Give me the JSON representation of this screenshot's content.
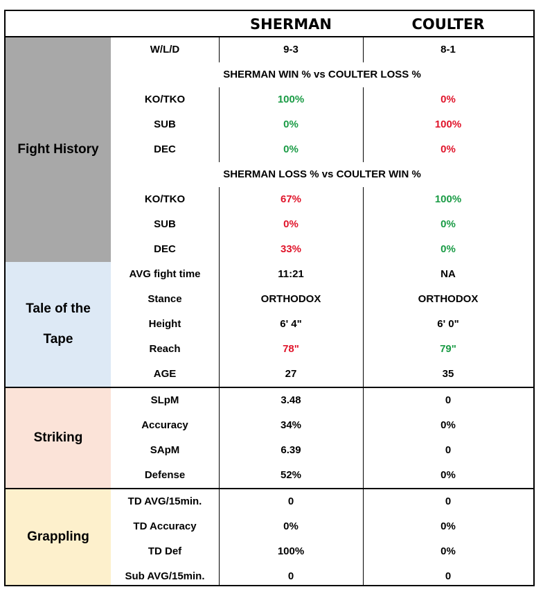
{
  "fighters": {
    "left": "SHERMAN",
    "right": "COULTER"
  },
  "colors": {
    "green": "#1a9b45",
    "red": "#e0142a",
    "fight_history": "#a8a8a8",
    "tape": "#dde9f5",
    "striking": "#fbe3d8",
    "grappling": "#fdf0cc"
  },
  "fight_history": {
    "title": "Fight History",
    "record": {
      "label": "W/L/D",
      "left": "9-3",
      "right": "8-1"
    },
    "win_header": "SHERMAN WIN % vs COULTER LOSS %",
    "win_rows": [
      {
        "label": "KO/TKO",
        "left": "100%",
        "right": "0%",
        "left_color": "green",
        "right_color": "red"
      },
      {
        "label": "SUB",
        "left": "0%",
        "right": "100%",
        "left_color": "green",
        "right_color": "red"
      },
      {
        "label": "DEC",
        "left": "0%",
        "right": "0%",
        "left_color": "green",
        "right_color": "red"
      }
    ],
    "loss_header": "SHERMAN LOSS % vs COULTER WIN %",
    "loss_rows": [
      {
        "label": "KO/TKO",
        "left": "67%",
        "right": "100%",
        "left_color": "red",
        "right_color": "green"
      },
      {
        "label": "SUB",
        "left": "0%",
        "right": "0%",
        "left_color": "red",
        "right_color": "green"
      },
      {
        "label": "DEC",
        "left": "33%",
        "right": "0%",
        "left_color": "red",
        "right_color": "green"
      }
    ]
  },
  "tape": {
    "title_line1": "Tale of the",
    "title_line2": "Tape",
    "rows": [
      {
        "label": "AVG fight time",
        "left": "11:21",
        "right": "NA"
      },
      {
        "label": "Stance",
        "left": "ORTHODOX",
        "right": "ORTHODOX"
      },
      {
        "label": "Height",
        "left": "6' 4\"",
        "right": "6' 0\""
      },
      {
        "label": "Reach",
        "left": "78\"",
        "right": "79\"",
        "left_color": "red",
        "right_color": "green"
      },
      {
        "label": "AGE",
        "left": "27",
        "right": "35"
      }
    ]
  },
  "striking": {
    "title": "Striking",
    "rows": [
      {
        "label": "SLpM",
        "left": "3.48",
        "right": "0"
      },
      {
        "label": "Accuracy",
        "left": "34%",
        "right": "0%"
      },
      {
        "label": "SApM",
        "left": "6.39",
        "right": "0"
      },
      {
        "label": "Defense",
        "left": "52%",
        "right": "0%"
      }
    ]
  },
  "grappling": {
    "title": "Grappling",
    "rows": [
      {
        "label": "TD AVG/15min.",
        "left": "0",
        "right": "0"
      },
      {
        "label": "TD Accuracy",
        "left": "0%",
        "right": "0%"
      },
      {
        "label": "TD Def",
        "left": "100%",
        "right": "0%"
      },
      {
        "label": "Sub AVG/15min.",
        "left": "0",
        "right": "0"
      }
    ]
  }
}
